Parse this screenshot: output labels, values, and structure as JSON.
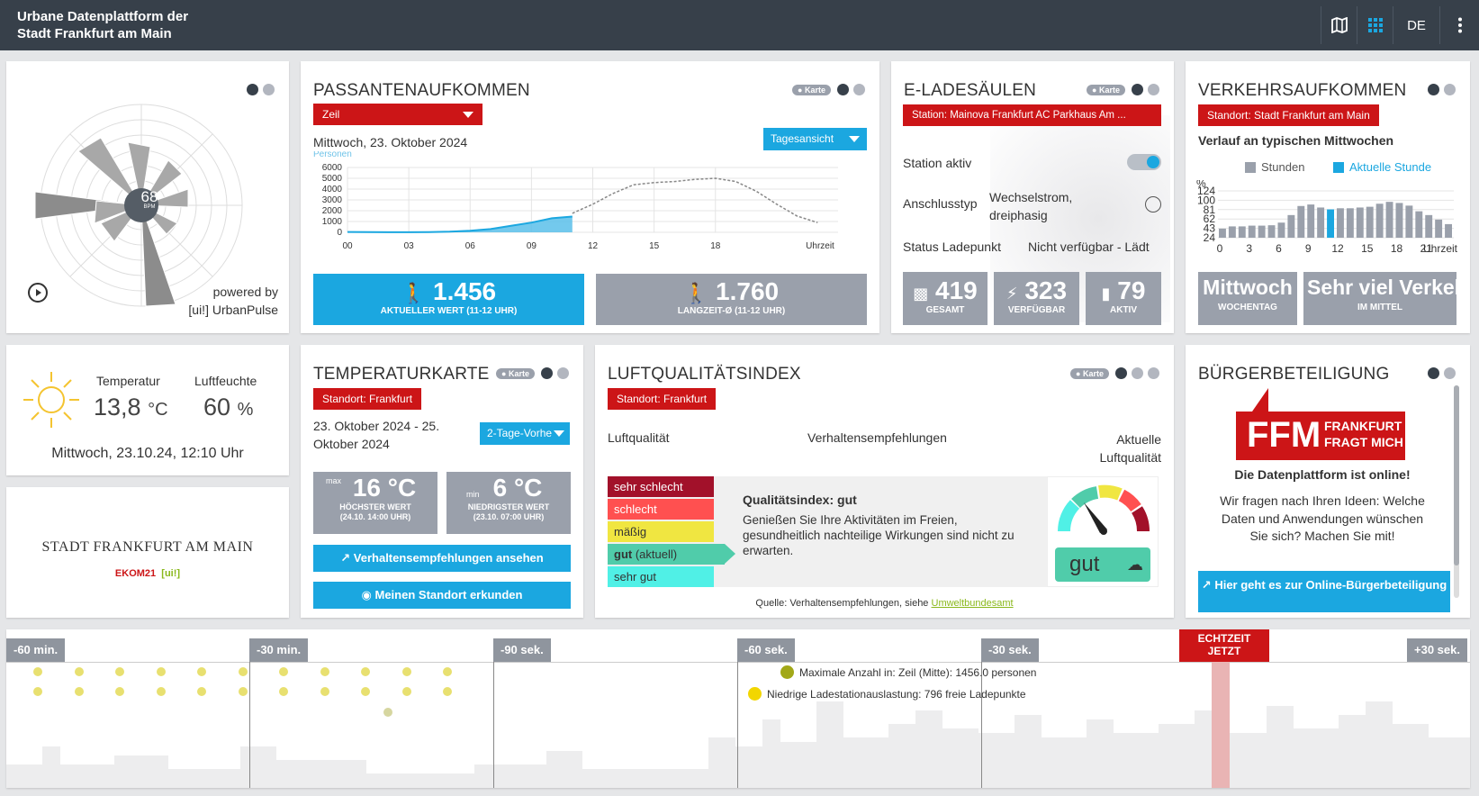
{
  "header": {
    "title_line1": "Urbane Datenplattform der",
    "title_line2": "Stadt Frankfurt am Main",
    "lang": "DE"
  },
  "pulse": {
    "value": "68",
    "unit": "BPM",
    "powered_by": "powered by",
    "brand": "[ui!] UrbanPulse"
  },
  "passanten": {
    "title": "PASSANTENAUFKOMMEN",
    "karte": "Karte",
    "location": "Zeil",
    "date": "Mittwoch, 23. Oktober 2024",
    "view": "Tagesansicht",
    "axis_label": "Personen",
    "kpi1_value": "1.456",
    "kpi1_label": "AKTUELLER WERT (11-12 UHR)",
    "kpi2_value": "1.760",
    "kpi2_label": "LANGZEIT-Ø (11-12 UHR)"
  },
  "chart_data": {
    "type": "area",
    "ylabel": "Personen",
    "ylim": [
      0,
      6000
    ],
    "yticks": [
      "6000",
      "5000",
      "4000",
      "3000",
      "2000",
      "1000",
      "0"
    ],
    "xticks": [
      "00",
      "03",
      "06",
      "09",
      "12",
      "15",
      "18",
      "Uhrzeit"
    ],
    "series": [
      {
        "x": [
          0,
          1,
          2,
          3,
          4,
          5,
          6,
          7,
          8,
          9,
          10,
          11
        ],
        "values": [
          30,
          20,
          10,
          10,
          20,
          60,
          150,
          300,
          600,
          900,
          1300,
          1456
        ]
      },
      {
        "x": [
          11,
          12,
          13,
          14,
          15,
          16,
          17,
          18,
          19,
          20,
          21,
          22,
          23
        ],
        "values": [
          1760,
          2600,
          3600,
          4400,
          4600,
          4700,
          4900,
          5000,
          4700,
          3800,
          2600,
          1500,
          900
        ]
      }
    ]
  },
  "ladesaeulen": {
    "title": "E-LADESÄULEN",
    "karte": "Karte",
    "station": "Station: Mainova Frankfurt AC Parkhaus Am ...",
    "station_aktiv": "Station aktiv",
    "anschlusstyp_label": "Anschlusstyp",
    "anschlusstyp_value": "Wechselstrom, dreiphasig",
    "status_label": "Status Ladepunkt",
    "status_value": "Nicht verfügbar - Lädt",
    "gesamt": "419",
    "gesamt_label": "GESAMT",
    "verfuegbar": "323",
    "verfuegbar_label": "VERFÜGBAR",
    "aktiv": "79",
    "aktiv_label": "AKTIV"
  },
  "verkehr": {
    "title": "VERKEHRSAUFKOMMEN",
    "standort": "Standort: Stadt Frankfurt am Main",
    "subtitle": "Verlauf an typischen Mittwochen",
    "legend_hours": "Stunden",
    "legend_current": "Aktuelle Stunde",
    "yunit": "%",
    "yticks": [
      "124",
      "100",
      "81",
      "62",
      "43",
      "24"
    ],
    "xticks": [
      "0",
      "3",
      "6",
      "9",
      "12",
      "15",
      "18",
      "21",
      "Uhrzeit"
    ],
    "values": [
      24,
      30,
      30,
      32,
      32,
      33,
      40,
      60,
      84,
      88,
      80,
      75,
      78,
      78,
      80,
      82,
      90,
      95,
      92,
      85,
      70,
      60,
      48,
      36
    ],
    "current_index": 11,
    "wochentag": "Mittwoch",
    "wochentag_label": "WOCHENTAG",
    "mittel": "Sehr viel Verkehr",
    "mittel_label": "IM MITTEL",
    "colors": {
      "bar": "#9aa0ab",
      "current": "#1ba7e0"
    }
  },
  "wetter": {
    "temp_label": "Temperatur",
    "temp_value": "13,8",
    "temp_unit": "°C",
    "hum_label": "Luftfeuchte",
    "hum_value": "60",
    "hum_unit": "%",
    "timestamp": "Mittwoch, 23.10.24, 12:10 Uhr"
  },
  "logo": {
    "city": "STADT FRANKFURT AM MAIN",
    "partner1": "EKOM21",
    "partner2": "[ui!]"
  },
  "tempkarte": {
    "title": "TEMPERATURKARTE",
    "karte": "Karte",
    "standort": "Standort: Frankfurt",
    "date_range": "23. Oktober 2024 - 25. Oktober 2024",
    "forecast": "2-Tage-Vorhe",
    "max_label": "max",
    "max_value": "16 °C",
    "max_sub1": "HÖCHSTER WERT",
    "max_sub2": "(24.10. 14:00 UHR)",
    "min_label": "min",
    "min_value": "6 °C",
    "min_sub1": "NIEDRIGSTER WERT",
    "min_sub2": "(23.10. 07:00 UHR)",
    "btn1": "Verhaltensempfehlungen ansehen",
    "btn2": "Meinen Standort erkunden"
  },
  "luft": {
    "title": "LUFTQUALITÄTSINDEX",
    "karte": "Karte",
    "standort": "Standort: Frankfurt",
    "col1": "Luftqualität",
    "col2": "Verhaltensempfehlungen",
    "col3": "Aktuelle Luftqualität",
    "levels": [
      "sehr schlecht",
      "schlecht",
      "mäßig",
      "gut",
      "sehr gut"
    ],
    "current_note": "(aktuell)",
    "index_title": "Qualitätsindex: gut",
    "index_text": "Genießen Sie Ihre Aktivitäten im Freien, gesundheitlich nachteilige Wirkungen sind nicht zu erwarten.",
    "badge": "gut",
    "source": "Quelle: Verhaltensempfehlungen, siehe",
    "source_link": "Umweltbundesamt",
    "colors": [
      "#a2112a",
      "#ff5050",
      "#f0e641",
      "#50ccaa",
      "#50f0e6"
    ]
  },
  "buerger": {
    "title": "BÜRGERBETEILIGUNG",
    "logo_big": "FFM",
    "logo_small1": "FRANKFURT",
    "logo_small2": "FRAGT MICH",
    "headline": "Die Datenplattform ist online!",
    "text": "Wir fragen nach Ihren Ideen: Welche Daten und Anwendungen wünschen Sie sich? Machen Sie mit!",
    "button": "Hier geht es zur Online-Bürgerbeteiligung"
  },
  "timeline": {
    "labels": [
      "-60 min.",
      "-30 min.",
      "-90 sek.",
      "-60 sek.",
      "-30 sek.",
      "+30 sek."
    ],
    "now_line1": "ECHTZEIT",
    "now_line2": "JETZT",
    "legend1": "Maximale Anzahl in: Zeil (Mitte): 1456.0 personen",
    "legend2": "Niedrige Ladestationauslastung: 796 freie Ladepunkte"
  }
}
